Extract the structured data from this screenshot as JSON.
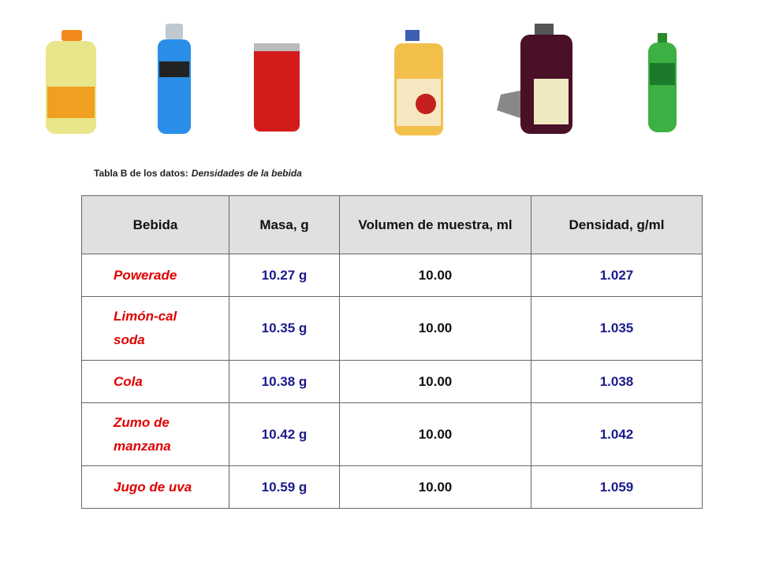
{
  "caption": {
    "label": "Tabla B de los datos:",
    "title": "Densidades de la bebida"
  },
  "table": {
    "header": [
      "Bebida",
      "Masa, g",
      "Volumen de muestra, ml",
      "Densidad, g/ml"
    ],
    "rows": [
      [
        "Powerade",
        "10.27 g",
        "10.00",
        "1.027"
      ],
      [
        "Limón-cal soda",
        "10.35 g",
        "10.00",
        "1.035"
      ],
      [
        "Cola",
        "10.38 g",
        "10.00",
        "1.038"
      ],
      [
        "Zumo de manzana",
        "10.42 g",
        "10.00",
        "1.042"
      ],
      [
        "Jugo de uva",
        "10.59 g",
        "10.00",
        "1.059"
      ]
    ]
  }
}
